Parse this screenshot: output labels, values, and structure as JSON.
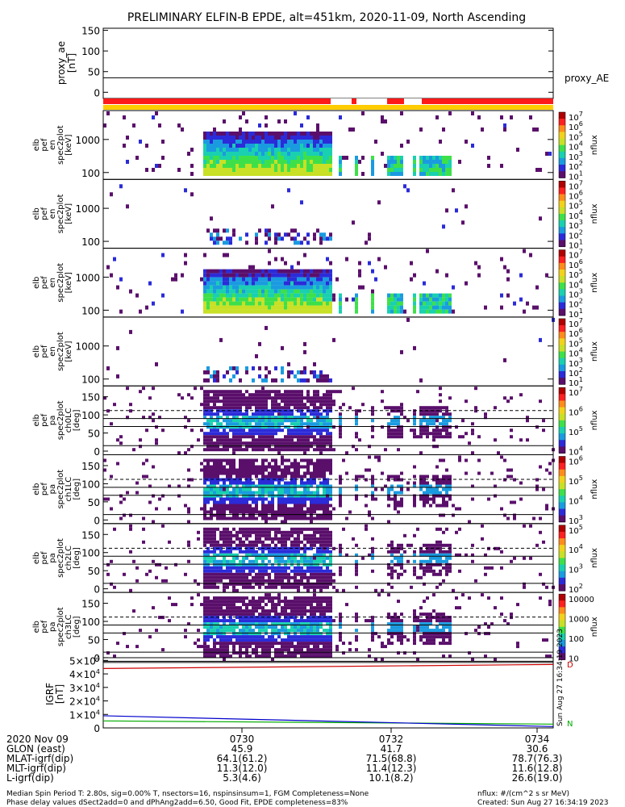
{
  "title": "PRELIMINARY ELFIN-B EPDE, alt=451km, 2020-11-09, North Ascending",
  "proxy_panel": {
    "ylabel": "proxy_ae [nT]",
    "yticks": [
      "150",
      "100",
      "50",
      "0"
    ],
    "legend": "proxy_AE",
    "value": 35
  },
  "panels": [
    {
      "ylabel": "elb pef en spec2plot [keV]",
      "type": "energy",
      "density": 1.0,
      "yticks": [
        "1000",
        "100"
      ],
      "clabel": "nflux",
      "cticks": [
        "10^7",
        "10^6",
        "10^5",
        "10^4",
        "10^3",
        "10^2",
        "10^1"
      ]
    },
    {
      "ylabel": "elb pef en spec2plot [keV]",
      "type": "energy",
      "density": 0.25,
      "yticks": [
        "1000",
        "100"
      ],
      "clabel": "nflux",
      "cticks": [
        "10^7",
        "10^6",
        "10^5",
        "10^4",
        "10^3",
        "10^2",
        "10^1"
      ]
    },
    {
      "ylabel": "elb pef en spec2plot [keV]",
      "type": "energy",
      "density": 0.9,
      "yticks": [
        "1000",
        "100"
      ],
      "clabel": "nflux",
      "cticks": [
        "10^7",
        "10^6",
        "10^5",
        "10^4",
        "10^3",
        "10^2",
        "10^1"
      ]
    },
    {
      "ylabel": "elb pef en spec2plot [keV]",
      "type": "energy",
      "density": 0.2,
      "yticks": [
        "1000",
        "100"
      ],
      "clabel": "nflux",
      "cticks": [
        "10^7",
        "10^6",
        "10^5",
        "10^4",
        "10^3",
        "10^2",
        "10^1"
      ]
    },
    {
      "ylabel": "elb pef pa spec2plot ch0LC [deg]",
      "type": "pa",
      "yticks": [
        "150",
        "100",
        "50",
        "0"
      ],
      "clabel": "nflux",
      "cticks": [
        "10^7",
        "10^6",
        "10^5",
        "10^4"
      ]
    },
    {
      "ylabel": "elb pef pa spec2plot ch1LC [deg]",
      "type": "pa",
      "yticks": [
        "150",
        "100",
        "50",
        "0"
      ],
      "clabel": "nflux",
      "cticks": [
        "10^6",
        "10^5",
        "10^4",
        "10^3"
      ]
    },
    {
      "ylabel": "elb pef pa spec2plot ch2LC [deg]",
      "type": "pa",
      "yticks": [
        "150",
        "100",
        "50",
        "0"
      ],
      "clabel": "nflux",
      "cticks": [
        "10^5",
        "10^4",
        "10^3",
        "10^2"
      ]
    },
    {
      "ylabel": "elb pef pa spec2plot ch3LC [deg]",
      "type": "pa",
      "yticks": [
        "150",
        "100",
        "50",
        "0"
      ],
      "clabel": "nflux",
      "cticks": [
        "10000",
        "1000",
        "100",
        "10"
      ]
    }
  ],
  "igrf_panel": {
    "ylabel": "IGRF [nT]",
    "yticks": [
      "5x10^4",
      "4x10^4",
      "3x10^4",
      "2x10^4",
      "1x10^4",
      "0"
    ],
    "legend": [
      "D",
      "N"
    ],
    "created_side": "Sun Aug 27 16:34:19 2023"
  },
  "chart_data": {
    "type": "heatmap",
    "title": "PRELIMINARY ELFIN-B EPDE, alt=451km, 2020-11-09, North Ascending",
    "x_time_labels": [
      "0730",
      "0732",
      "0734"
    ],
    "proxy_ae": {
      "ylim": [
        -15,
        155
      ],
      "value": 35
    },
    "igrf": {
      "ylim": [
        0,
        52000
      ],
      "series": [
        {
          "name": "D",
          "color": "#cc0000",
          "values": [
            44000,
            47000
          ]
        },
        {
          "name": "N",
          "color": "#00aa00",
          "values": [
            5200,
            2800
          ]
        },
        {
          "color": "#0000cc",
          "values": [
            9000,
            1000
          ]
        }
      ]
    },
    "colorscale": [
      "#5a0f6b",
      "#2b2bd9",
      "#1a9be0",
      "#19d0b0",
      "#3ee04a",
      "#c8e025",
      "#f2d21c",
      "#ff8c1a",
      "#ff2020",
      "#b00000"
    ]
  },
  "footer_rows": [
    {
      "label": "2020 Nov 09",
      "values": [
        "0730",
        "0732",
        "0734"
      ]
    },
    {
      "label": "GLON (east)",
      "values": [
        "45.9",
        "41.7",
        "30.6"
      ]
    },
    {
      "label": "MLAT-igrf(dip)",
      "values": [
        "64.1(61.2)",
        "71.5(68.8)",
        "78.7(76.3)"
      ]
    },
    {
      "label": "MLT-igrf(dip)",
      "values": [
        "11.3(12.0)",
        "11.4(12.3)",
        "11.6(12.8)"
      ]
    },
    {
      "label": "L-igrf(dip)",
      "values": [
        "5.3(4.6)",
        "10.1(8.2)",
        "26.6(19.0)"
      ]
    }
  ],
  "notes": {
    "line1": "Median Spin Period T: 2.80s, sig=0.00% T, nsectors=16, nspinsinsum=1, FGM Completeness=None",
    "line2": "Phase delay values dSect2add=0 and dPhAng2add=6.50, Good Fit, EPDE completeness=83%",
    "units": "nflux: #/(cm^2 s sr MeV)",
    "created": "Created: Sun Aug 27 16:34:19 2023"
  }
}
